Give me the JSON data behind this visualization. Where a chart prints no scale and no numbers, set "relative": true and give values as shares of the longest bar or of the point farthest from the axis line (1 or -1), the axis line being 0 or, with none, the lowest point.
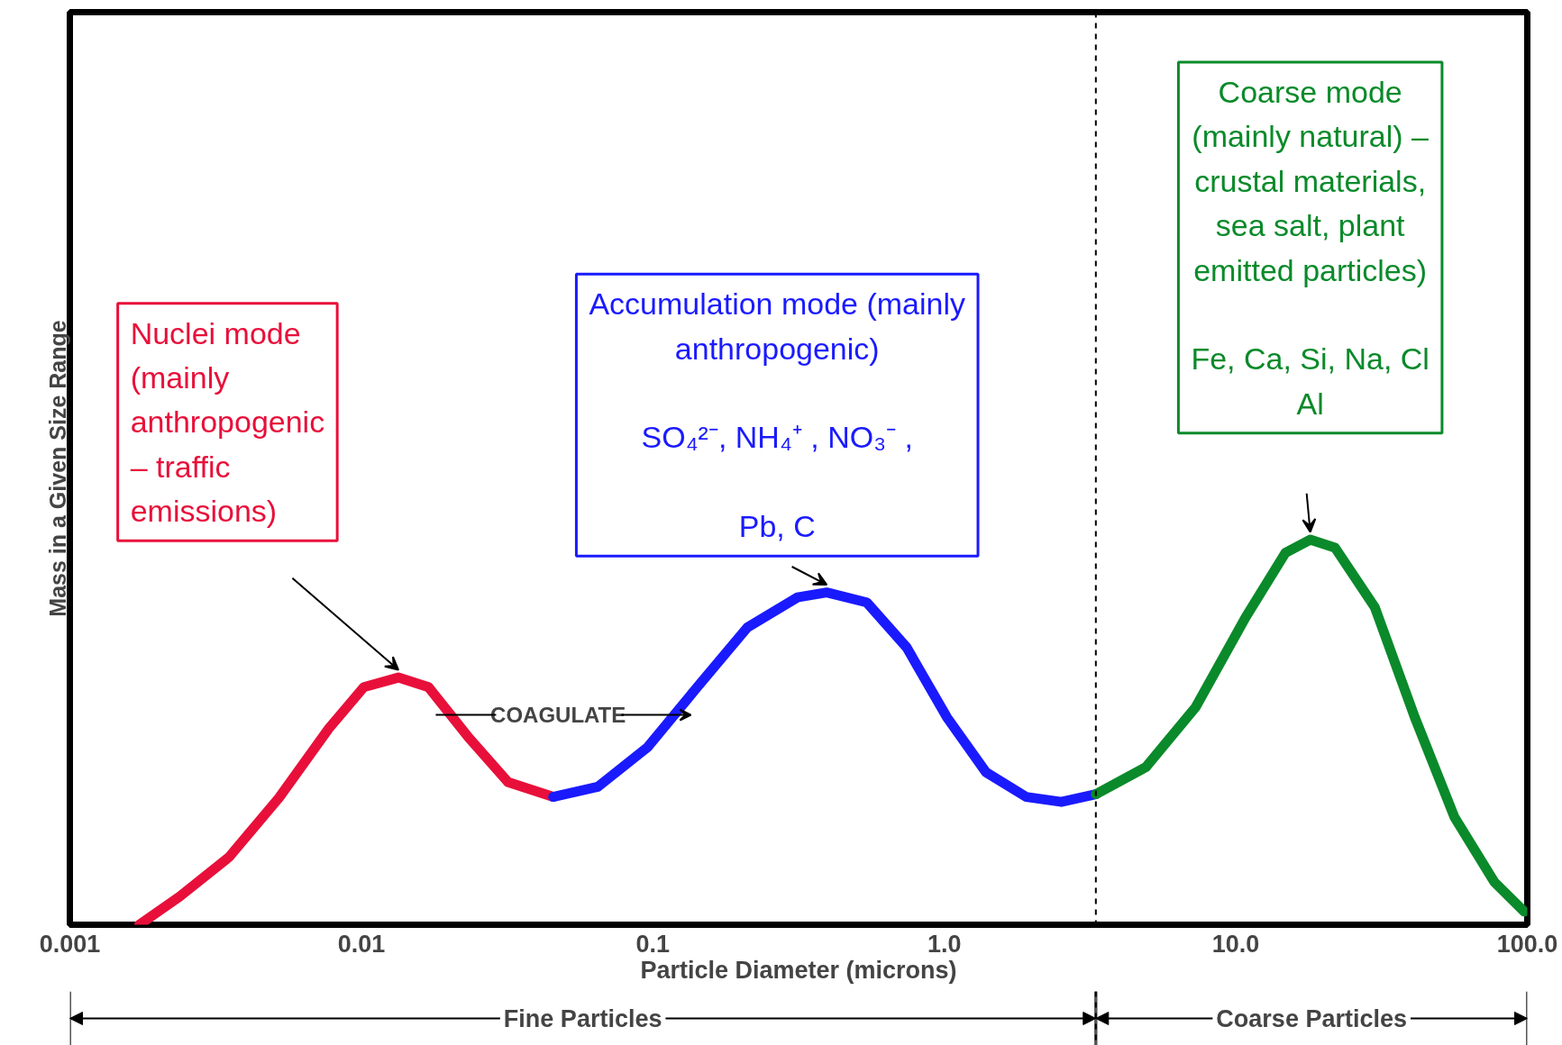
{
  "chart_data": {
    "type": "line",
    "xlabel": "Particle Diameter (microns)",
    "ylabel": "Mass in a Given Size Range",
    "log": "x",
    "relative": true,
    "line_style": "solid",
    "marker": "none",
    "xlim": [
      0.001,
      100
    ],
    "xticks": [
      {
        "value": 0.001,
        "label": "0.001"
      },
      {
        "value": 0.01,
        "label": "0.01"
      },
      {
        "value": 0.1,
        "label": "0.1"
      },
      {
        "value": 1,
        "label": "1.0"
      },
      {
        "value": 10,
        "label": "10.0"
      },
      {
        "value": 100,
        "label": "100.0"
      }
    ],
    "series": [
      {
        "color": "#e8103a",
        "x": [
          0.00173,
          0.00238,
          0.00352,
          0.00522,
          0.00774,
          0.0102,
          0.0134,
          0.017,
          0.0233,
          0.0319,
          0.0455
        ],
        "values": [
          0,
          0.073,
          0.176,
          0.33,
          0.51,
          0.617,
          0.642,
          0.617,
          0.487,
          0.37,
          0.332
        ]
      },
      {
        "color": "#1a1aff",
        "x": [
          0.0455,
          0.0647,
          0.0959,
          0.142,
          0.211,
          0.313,
          0.395,
          0.542,
          0.743,
          1.02,
          1.39,
          1.91,
          2.52,
          3.31
        ],
        "values": [
          0.332,
          0.358,
          0.461,
          0.617,
          0.772,
          0.85,
          0.863,
          0.837,
          0.72,
          0.539,
          0.396,
          0.332,
          0.319,
          0.339
        ]
      },
      {
        "color": "#0a8a2a",
        "x": [
          3.31,
          4.91,
          7.28,
          10.8,
          14.8,
          18.0,
          21.9,
          30.0,
          41.1,
          56.2,
          77.1,
          97.7
        ],
        "values": [
          0.339,
          0.409,
          0.565,
          0.798,
          0.966,
          1.0,
          0.979,
          0.824,
          0.539,
          0.28,
          0.111,
          0.034
        ]
      }
    ],
    "ref_lines": [
      {
        "axis": "x",
        "value": 3.31,
        "color": "#000000",
        "line_style": "dashed"
      }
    ],
    "annotations": [
      "Nuclei mode\n(mainly\nanthropogenic\n – traffic\nemissions)",
      "Accumulation mode (mainly\nanthropogenic)\n\nSO₄²⁻, NH₄⁺ , NO₃⁻ ,\n\nPb, C",
      "Coarse mode\n(mainly natural) –\ncrustal materials,\nsea salt, plant\nemitted particles)\n\nFe, Ca, Si, Na, Cl\nAl",
      "COAGULATE",
      "Fine Particles",
      "Coarse Particles"
    ]
  }
}
